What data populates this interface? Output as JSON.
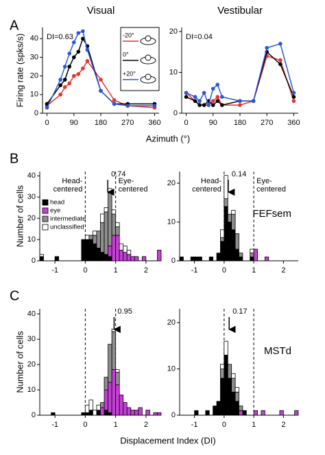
{
  "cell_types": [
    {
      "name": "head",
      "color": "#000000"
    },
    {
      "name": "eye",
      "color": "#c53fd6"
    },
    {
      "name": "intermediate",
      "color": "#8e8e8e"
    },
    {
      "name": "unclassified",
      "color": "#ffffff"
    }
  ],
  "chart_data": [
    {
      "type": "line",
      "panel_label": "A",
      "title": "Visual",
      "ylabel": "Firing rate (spks/s)",
      "xlabel": "Azimuth (°)",
      "annotation": "DI=0.63",
      "legend": "inset",
      "x": [
        0,
        45,
        60,
        75,
        90,
        105,
        120,
        135,
        180,
        225,
        270,
        360
      ],
      "series": [
        {
          "name": "-20°",
          "color": "#e8322a",
          "values": [
            4,
            10,
            14,
            16,
            20,
            21,
            24,
            28,
            18,
            7,
            4,
            3
          ]
        },
        {
          "name": "0°",
          "color": "#000000",
          "values": [
            5,
            15,
            18,
            25,
            30,
            33,
            40,
            36,
            12,
            5,
            5,
            5
          ]
        },
        {
          "name": "+20°",
          "color": "#2a56d6",
          "values": [
            3,
            18,
            25,
            32,
            38,
            43,
            44,
            34,
            12,
            5,
            4,
            4
          ]
        }
      ],
      "xlim": [
        -15,
        375
      ],
      "xticks": [
        0,
        90,
        180,
        270,
        360
      ],
      "ylim": [
        0,
        46
      ],
      "yticks": [
        0,
        10,
        20,
        30,
        40
      ]
    },
    {
      "type": "line",
      "title": "Vestibular",
      "annotation": "DI=0.04",
      "x": [
        0,
        30,
        45,
        60,
        75,
        90,
        105,
        120,
        180,
        225,
        270,
        315,
        360
      ],
      "series": [
        {
          "color": "#e8322a",
          "values": [
            5,
            3,
            2,
            2,
            2,
            3,
            4,
            2,
            2,
            3,
            14,
            13,
            3
          ]
        },
        {
          "color": "#000000",
          "values": [
            4,
            3,
            2,
            2,
            3,
            2,
            3,
            2,
            3,
            3,
            15,
            12,
            4
          ]
        },
        {
          "color": "#2a56d6",
          "values": [
            5,
            4,
            3,
            5,
            2,
            6,
            7,
            4,
            3,
            3,
            16,
            17,
            5
          ]
        }
      ],
      "xlim": [
        -15,
        375
      ],
      "xticks": [
        0,
        90,
        180,
        270,
        360
      ],
      "ylim": [
        0,
        21
      ],
      "yticks": [
        0,
        10,
        20
      ]
    },
    {
      "type": "histogram",
      "panel_label": "B",
      "ylabel": "Number of cells",
      "legend": "left",
      "head_label": [
        "Head-",
        "centered"
      ],
      "eye_label": [
        "Eye-",
        "centered"
      ],
      "marker": 0.74,
      "ref_lines": [
        0,
        1
      ],
      "bins": [
        -1.5,
        -1.375,
        -1.25,
        -1.125,
        -1,
        -0.875,
        -0.75,
        -0.625,
        -0.5,
        -0.375,
        -0.25,
        -0.125,
        0,
        0.125,
        0.25,
        0.375,
        0.5,
        0.625,
        0.75,
        0.875,
        1,
        1.125,
        1.25,
        1.375,
        1.5,
        1.625,
        1.75,
        1.875,
        2,
        2.125,
        2.25,
        2.375,
        2.5
      ],
      "counts": [
        [
          2,
          0,
          0,
          0,
          2,
          0,
          0,
          0,
          0,
          0,
          0,
          10,
          10,
          10,
          8,
          6,
          4,
          3,
          2,
          0,
          0,
          0,
          0,
          0,
          0,
          0,
          0,
          0,
          0,
          0,
          0,
          0
        ],
        [
          0,
          0,
          0,
          0,
          0,
          0,
          0,
          0,
          0,
          0,
          0,
          0,
          0,
          0,
          0,
          0,
          0,
          0,
          5,
          12,
          12,
          5,
          4,
          3,
          2,
          2,
          0,
          2,
          0,
          0,
          0,
          5
        ],
        [
          0,
          0,
          0,
          0,
          0,
          0,
          0,
          0,
          0,
          0,
          0,
          0,
          0,
          2,
          4,
          8,
          14,
          20,
          25,
          10,
          4,
          0,
          0,
          0,
          0,
          0,
          0,
          0,
          0,
          0,
          0,
          0
        ],
        [
          1,
          0,
          0,
          0,
          0,
          0,
          0,
          0,
          0,
          0,
          0,
          0,
          2,
          0,
          2,
          0,
          4,
          2,
          2,
          2,
          2,
          3,
          3,
          2,
          0,
          0,
          0,
          0,
          0,
          0,
          0,
          0
        ]
      ],
      "xlim": [
        -1.5,
        2.5
      ],
      "xticks": [
        -1,
        0,
        1,
        2
      ],
      "ylim": [
        0,
        42
      ],
      "yticks": [
        0,
        10,
        20,
        30,
        40
      ]
    },
    {
      "type": "histogram",
      "head_label": [
        "Head-",
        "centered"
      ],
      "eye_label": [
        "Eye-",
        "centered"
      ],
      "marker": 0.14,
      "region": "FEFsem",
      "ref_lines": [
        0,
        1
      ],
      "bins": [
        -1.5,
        -1.375,
        -1.25,
        -1.125,
        -1,
        -0.875,
        -0.75,
        -0.625,
        -0.5,
        -0.375,
        -0.25,
        -0.125,
        0,
        0.125,
        0.25,
        0.375,
        0.5,
        0.625,
        0.75,
        0.875,
        1,
        1.125,
        1.25,
        1.375,
        1.5,
        1.625,
        1.75,
        1.875,
        2,
        2.125,
        2.25,
        2.375,
        2.5
      ],
      "counts": [
        [
          1,
          0,
          0,
          1,
          1,
          1,
          0,
          0,
          1,
          0,
          2,
          5,
          14,
          10,
          8,
          3,
          1,
          0,
          0,
          1,
          0,
          0,
          0,
          0,
          0,
          0,
          0,
          0,
          0,
          0,
          0,
          0
        ],
        [
          0,
          0,
          0,
          0,
          0,
          0,
          0,
          0,
          0,
          0,
          0,
          0,
          0,
          0,
          0,
          0,
          0,
          0,
          0,
          0,
          3,
          0,
          0,
          1,
          0,
          0,
          0,
          0,
          0,
          0,
          0,
          0
        ],
        [
          0,
          0,
          0,
          0,
          0,
          0,
          0,
          0,
          0,
          0,
          0,
          1,
          2,
          2,
          4,
          4,
          1,
          0,
          0,
          1,
          0,
          0,
          0,
          0,
          0,
          0,
          0,
          0,
          0,
          0,
          0,
          0
        ],
        [
          0,
          0,
          0,
          0,
          0,
          0,
          0,
          0,
          0,
          0,
          0,
          2,
          6,
          0,
          1,
          0,
          0,
          0,
          0,
          1,
          0,
          0,
          0,
          0,
          0,
          0,
          0,
          0,
          0,
          0,
          0,
          0
        ]
      ],
      "xlim": [
        -1.5,
        2.5
      ],
      "xticks": [
        -1,
        0,
        1,
        2
      ],
      "ylim": [
        0,
        23
      ],
      "yticks": [
        0,
        10,
        20
      ]
    },
    {
      "type": "histogram",
      "panel_label": "C",
      "ylabel": "Number of cells",
      "xlabel": "Displacement Index (DI)",
      "marker": 0.95,
      "ref_lines": [
        0,
        1
      ],
      "bins": [
        -1.5,
        -1.375,
        -1.25,
        -1.125,
        -1,
        -0.875,
        -0.75,
        -0.625,
        -0.5,
        -0.375,
        -0.25,
        -0.125,
        0,
        0.125,
        0.25,
        0.375,
        0.5,
        0.625,
        0.75,
        0.875,
        1,
        1.125,
        1.25,
        1.375,
        1.5,
        1.625,
        1.75,
        1.875,
        2,
        2.125,
        2.25,
        2.375,
        2.5
      ],
      "counts": [
        [
          0,
          0,
          0,
          1,
          0,
          0,
          0,
          0,
          0,
          0,
          0,
          1,
          1,
          2,
          0,
          2,
          0,
          2,
          1,
          0,
          0,
          0,
          0,
          0,
          0,
          0,
          0,
          0,
          0,
          0,
          0,
          0
        ],
        [
          0,
          0,
          0,
          0,
          0,
          0,
          0,
          0,
          0,
          0,
          0,
          0,
          0,
          0,
          0,
          0,
          3,
          8,
          12,
          18,
          12,
          8,
          5,
          3,
          2,
          2,
          3,
          0,
          2,
          0,
          1,
          1
        ],
        [
          0,
          0,
          0,
          0,
          0,
          0,
          0,
          0,
          0,
          0,
          0,
          0,
          0,
          0,
          0,
          0,
          2,
          5,
          15,
          15,
          5,
          0,
          0,
          0,
          0,
          0,
          0,
          0,
          0,
          0,
          0,
          0
        ],
        [
          0,
          0,
          0,
          0,
          0,
          0,
          0,
          0,
          0,
          0,
          0,
          0,
          3,
          4,
          2,
          2,
          0,
          0,
          0,
          1,
          1,
          0,
          0,
          0,
          0,
          0,
          0,
          0,
          0,
          0,
          0,
          0
        ]
      ],
      "xlim": [
        -1.5,
        2.5
      ],
      "xticks": [
        -1,
        0,
        1,
        2
      ],
      "ylim": [
        0,
        42
      ],
      "yticks": [
        0,
        10,
        20,
        30,
        40
      ]
    },
    {
      "type": "histogram",
      "marker": 0.17,
      "region": "MSTd",
      "ref_lines": [
        0,
        1
      ],
      "bins": [
        -1.5,
        -1.375,
        -1.25,
        -1.125,
        -1,
        -0.875,
        -0.75,
        -0.625,
        -0.5,
        -0.375,
        -0.25,
        -0.125,
        0,
        0.125,
        0.25,
        0.375,
        0.5,
        0.625,
        0.75,
        0.875,
        1,
        1.125,
        1.25,
        1.375,
        1.5,
        1.625,
        1.75,
        1.875,
        2,
        2.125,
        2.25,
        2.375,
        2.5
      ],
      "counts": [
        [
          0,
          0,
          0,
          0,
          1,
          0,
          0,
          1,
          0,
          2,
          3,
          8,
          13,
          8,
          5,
          3,
          0,
          1,
          0,
          0,
          0,
          0,
          0,
          0,
          0,
          0,
          0,
          0,
          0,
          0,
          0,
          0
        ],
        [
          0,
          0,
          0,
          0,
          0,
          0,
          0,
          0,
          0,
          0,
          0,
          0,
          0,
          0,
          0,
          0,
          1,
          0,
          0,
          0,
          1,
          0,
          1,
          0,
          0,
          0,
          0,
          1,
          0,
          0,
          0,
          1
        ],
        [
          0,
          0,
          0,
          0,
          0,
          0,
          0,
          0,
          0,
          0,
          0,
          2,
          0,
          3,
          3,
          2,
          1,
          0,
          0,
          0,
          0,
          0,
          0,
          0,
          0,
          0,
          0,
          0,
          0,
          0,
          0,
          0
        ],
        [
          0,
          0,
          0,
          0,
          0,
          0,
          0,
          0,
          0,
          0,
          0,
          1,
          3,
          0,
          1,
          1,
          0,
          0,
          0,
          0,
          0,
          0,
          0,
          0,
          0,
          0,
          0,
          0,
          0,
          0,
          0,
          0
        ]
      ],
      "xlim": [
        -1.5,
        2.5
      ],
      "xticks": [
        -1,
        0,
        1,
        2
      ],
      "ylim": [
        0,
        23
      ],
      "yticks": [
        0,
        10,
        20
      ]
    }
  ]
}
